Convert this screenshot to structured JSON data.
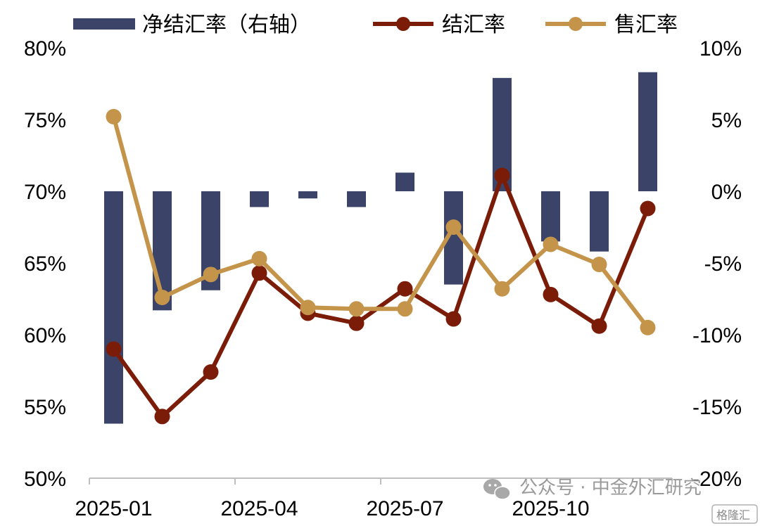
{
  "chart_data": {
    "type": "bar+line",
    "x": [
      "2025-01",
      "2025-02",
      "2025-03",
      "2025-04",
      "2025-05",
      "2025-06",
      "2025-07",
      "2025-08",
      "2025-09",
      "2025-10",
      "2025-11",
      "2025-12"
    ],
    "x_tick_labels": [
      "2025-01",
      "2025-04",
      "2025-07",
      "2025-10"
    ],
    "left_axis": {
      "ylim": [
        50,
        80
      ],
      "ticks": [
        "80%",
        "75%",
        "70%",
        "65%",
        "60%",
        "55%",
        "50%"
      ]
    },
    "right_axis": {
      "ylim": [
        -20,
        10
      ],
      "ticks": [
        "10%",
        "5%",
        "0%",
        "-5%",
        "-10%",
        "-15%",
        "-20%"
      ]
    },
    "series": [
      {
        "name": "净结汇率（右轴）",
        "type": "bar",
        "axis": "right",
        "color": "#3b4468",
        "values": [
          -16.2,
          -8.3,
          -6.9,
          -1.1,
          -0.5,
          -1.1,
          1.3,
          -6.5,
          7.9,
          -3.5,
          -4.2,
          8.3
        ]
      },
      {
        "name": "结汇率",
        "type": "line",
        "axis": "left",
        "color": "#7b1c08",
        "values": [
          59.0,
          54.3,
          57.4,
          64.3,
          61.5,
          60.8,
          63.2,
          61.1,
          71.1,
          62.8,
          60.6,
          68.8
        ]
      },
      {
        "name": "售汇率",
        "type": "line",
        "axis": "left",
        "color": "#c4944a",
        "values": [
          75.2,
          62.6,
          64.2,
          65.3,
          61.9,
          61.8,
          61.8,
          67.5,
          63.2,
          66.3,
          64.9,
          60.5
        ]
      }
    ],
    "legend": "top",
    "grid": false
  },
  "watermark": {
    "text": "公众号 · 中金外汇研究",
    "badge": "格隆汇"
  }
}
